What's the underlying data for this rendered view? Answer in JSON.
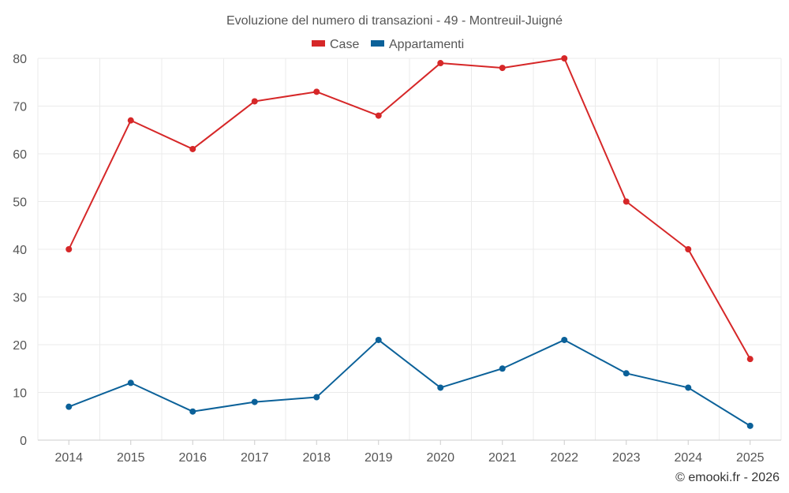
{
  "chart_data": {
    "type": "line",
    "title": "Evoluzione del numero di transazioni - 49 - Montreuil-Juigné",
    "categories": [
      "2014",
      "2015",
      "2016",
      "2017",
      "2018",
      "2019",
      "2020",
      "2021",
      "2022",
      "2023",
      "2024",
      "2025"
    ],
    "series": [
      {
        "name": "Case",
        "color": "#d62728",
        "values": [
          40,
          67,
          61,
          71,
          73,
          68,
          79,
          78,
          80,
          50,
          40,
          17
        ]
      },
      {
        "name": "Appartamenti",
        "color": "#0b6199",
        "values": [
          7,
          12,
          6,
          8,
          9,
          21,
          11,
          15,
          21,
          14,
          11,
          3
        ]
      }
    ],
    "xlabel": "",
    "ylabel": "",
    "ylim": [
      0,
      80
    ],
    "yticks": [
      "0",
      "10",
      "20",
      "30",
      "40",
      "50",
      "60",
      "70",
      "80"
    ],
    "grid": true,
    "legend_position": "top-center"
  },
  "credit": "© emooki.fr - 2026"
}
